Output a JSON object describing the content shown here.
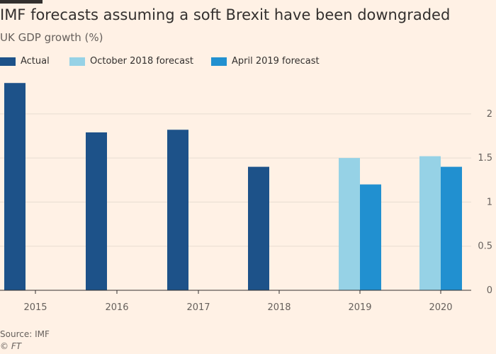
{
  "header": {
    "title": "IMF forecasts assuming a soft Brexit have been downgraded",
    "subtitle": "UK GDP growth (%)"
  },
  "footer": {
    "source": "Source: IMF",
    "credit": "© FT"
  },
  "colors": {
    "background": "#fff1e5",
    "actual": "#1d5289",
    "october_2018": "#96d2e6",
    "april_2019": "#2190d0",
    "grid": "#e7ddd2",
    "axis": "#33302e"
  },
  "chart_data": {
    "type": "bar",
    "title": "IMF forecasts assuming a soft Brexit have been downgraded",
    "subtitle": "UK GDP growth (%)",
    "categories": [
      "2015",
      "2016",
      "2017",
      "2018",
      "2019",
      "2020"
    ],
    "series": [
      {
        "name": "Actual",
        "color": "#1d5289",
        "values": [
          2.35,
          1.79,
          1.82,
          1.4,
          null,
          null
        ]
      },
      {
        "name": "October 2018 forecast",
        "color": "#96d2e6",
        "values": [
          null,
          null,
          null,
          null,
          1.5,
          1.52
        ]
      },
      {
        "name": "April 2019 forecast",
        "color": "#2190d0",
        "values": [
          null,
          null,
          null,
          null,
          1.2,
          1.4
        ]
      }
    ],
    "ylim": [
      0,
      2.4
    ],
    "yticks": [
      0,
      0.5,
      1,
      1.5,
      2
    ],
    "ytick_labels": [
      "0",
      "0.5",
      "1",
      "1.5",
      "2"
    ],
    "y_axis_side": "right",
    "grid": true,
    "legend_position": "top-left"
  }
}
